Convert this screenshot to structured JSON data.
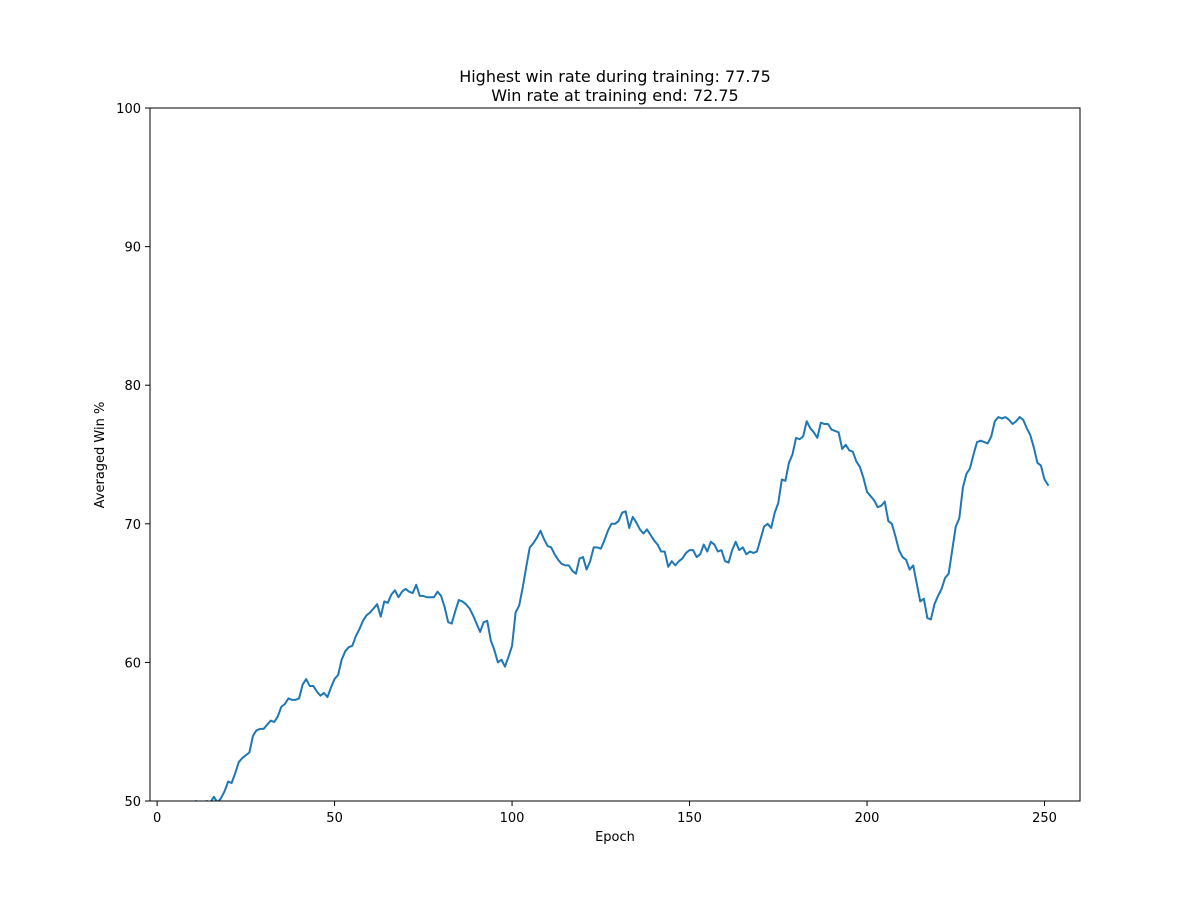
{
  "chart_data": {
    "type": "line",
    "title_lines": [
      "Highest win rate during training: 77.75",
      "Win rate at training end: 72.75"
    ],
    "xlabel": "Epoch",
    "ylabel": "Averaged Win %",
    "xlim": [
      -2,
      260
    ],
    "ylim": [
      50,
      100
    ],
    "x_ticks": [
      0,
      50,
      100,
      150,
      200,
      250
    ],
    "y_ticks": [
      50,
      60,
      70,
      80,
      90,
      100
    ],
    "grid": false,
    "line_color": "#1f77b4",
    "series": [
      {
        "x_start": 10,
        "values": [
          49.5,
          50.0,
          49.8,
          49.9,
          50.0,
          49.9,
          50.3,
          49.9,
          50.2,
          50.7,
          51.4,
          51.3,
          52.0,
          52.8,
          53.1,
          53.3,
          53.5,
          54.7,
          55.1,
          55.2,
          55.2,
          55.5,
          55.8,
          55.7,
          56.1,
          56.8,
          57.0,
          57.4,
          57.3,
          57.3,
          57.4,
          58.4,
          58.8,
          58.3,
          58.3,
          57.9,
          57.6,
          57.8,
          57.5,
          58.2,
          58.8,
          59.1,
          60.2,
          60.8,
          61.1,
          61.2,
          61.9,
          62.4,
          63.0,
          63.4,
          63.6,
          63.9,
          64.2,
          63.3,
          64.4,
          64.3,
          64.9,
          65.2,
          64.7,
          65.1,
          65.3,
          65.1,
          65.0,
          65.6,
          64.8,
          64.8,
          64.7,
          64.7,
          64.7,
          65.1,
          64.8,
          64.0,
          62.9,
          62.8,
          63.7,
          64.5,
          64.4,
          64.2,
          63.9,
          63.4,
          62.8,
          62.2,
          62.9,
          63.0,
          61.6,
          60.9,
          60.0,
          60.2,
          59.7,
          60.4,
          61.2,
          63.6,
          64.1,
          65.4,
          66.9,
          68.3,
          68.6,
          69.0,
          69.5,
          68.9,
          68.4,
          68.3,
          67.8,
          67.4,
          67.1,
          67.0,
          67.0,
          66.6,
          66.4,
          67.5,
          67.6,
          66.7,
          67.3,
          68.3,
          68.3,
          68.2,
          68.8,
          69.5,
          70.0,
          70.0,
          70.2,
          70.8,
          70.9,
          69.7,
          70.5,
          70.1,
          69.6,
          69.3,
          69.6,
          69.2,
          68.8,
          68.5,
          68.0,
          68.0,
          66.9,
          67.3,
          67.0,
          67.3,
          67.5,
          67.9,
          68.1,
          68.1,
          67.6,
          67.8,
          68.5,
          68.0,
          68.7,
          68.5,
          68.0,
          68.1,
          67.3,
          67.2,
          68.1,
          68.7,
          68.1,
          68.3,
          67.8,
          68.0,
          67.9,
          68.0,
          68.9,
          69.8,
          70.0,
          69.7,
          70.8,
          71.5,
          73.2,
          73.1,
          74.4,
          75.0,
          76.2,
          76.1,
          76.3,
          77.4,
          76.9,
          76.6,
          76.2,
          77.3,
          77.2,
          77.2,
          76.8,
          76.7,
          76.6,
          75.4,
          75.7,
          75.3,
          75.2,
          74.5,
          74.1,
          73.3,
          72.3,
          72.0,
          71.7,
          71.2,
          71.3,
          71.6,
          70.2,
          70.0,
          69.1,
          68.1,
          67.6,
          67.4,
          66.7,
          67.0,
          65.7,
          64.4,
          64.6,
          63.2,
          63.1,
          64.2,
          64.8,
          65.3,
          66.1,
          66.4,
          68.1,
          69.8,
          70.4,
          72.6,
          73.6,
          74.0,
          75.0,
          75.9,
          76.0,
          75.9,
          75.8,
          76.3,
          77.4,
          77.7,
          77.6,
          77.7,
          77.5,
          77.2,
          77.4,
          77.7,
          77.5,
          76.9,
          76.4,
          75.5,
          74.4,
          74.2,
          73.2,
          72.8
        ]
      }
    ]
  }
}
